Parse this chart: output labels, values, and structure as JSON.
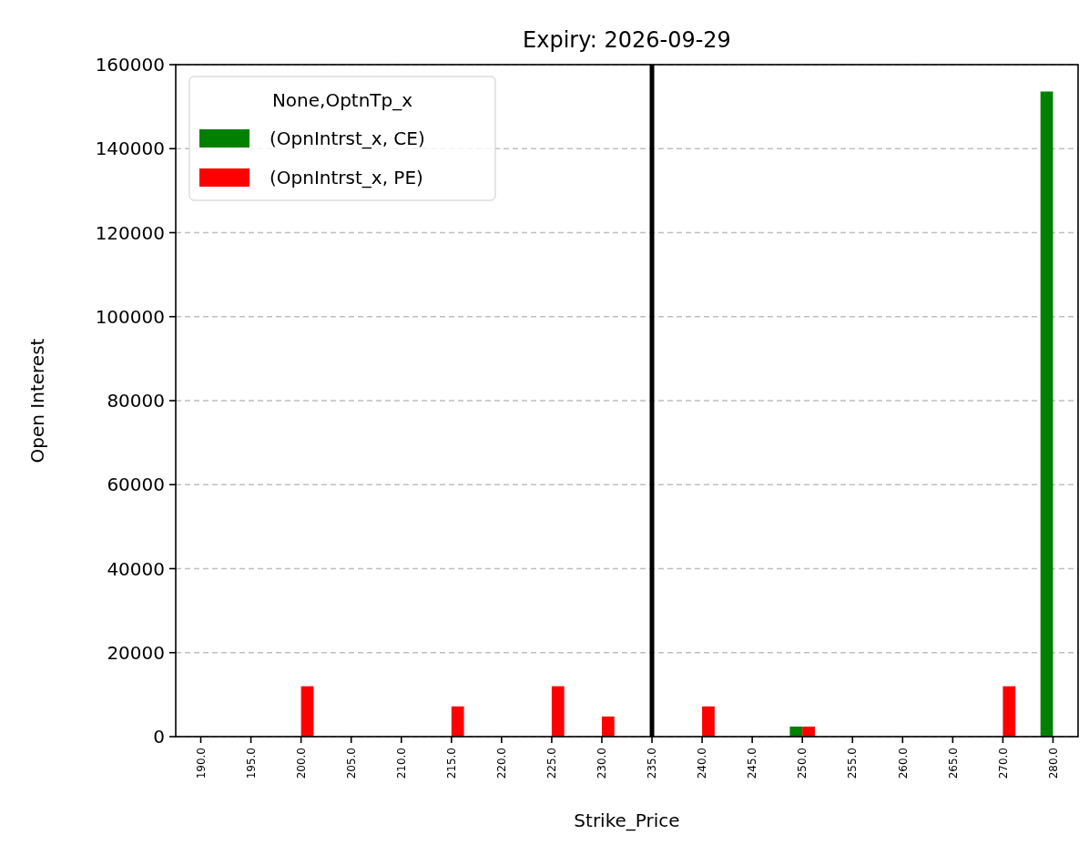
{
  "chart_data": {
    "type": "bar",
    "title": "Expiry: 2026-09-29",
    "xlabel": "Strike_Price",
    "ylabel": "Open Interest",
    "legend_title": "None,OptnTp_x",
    "categories": [
      "190.0",
      "195.0",
      "200.0",
      "205.0",
      "210.0",
      "215.0",
      "220.0",
      "225.0",
      "230.0",
      "235.0",
      "240.0",
      "245.0",
      "250.0",
      "255.0",
      "260.0",
      "265.0",
      "270.0",
      "280.0"
    ],
    "series": [
      {
        "name": "(OpnIntrst_x, CE)",
        "color": "#008000",
        "values": [
          null,
          null,
          null,
          null,
          null,
          null,
          null,
          null,
          null,
          null,
          null,
          null,
          2400,
          null,
          null,
          null,
          null,
          153600
        ]
      },
      {
        "name": "(OpnIntrst_x, PE)",
        "color": "#ff0000",
        "values": [
          null,
          null,
          12000,
          null,
          null,
          7200,
          null,
          12000,
          4800,
          null,
          7200,
          null,
          2400,
          null,
          null,
          null,
          12000,
          null
        ]
      }
    ],
    "ylim": [
      0,
      160000
    ],
    "yticks": [
      0,
      20000,
      40000,
      60000,
      80000,
      100000,
      120000,
      140000,
      160000
    ],
    "grid": "y",
    "legend": "top left",
    "ref_lines": [
      {
        "axis": "x",
        "value": "235.0",
        "color": "#000000"
      }
    ]
  }
}
